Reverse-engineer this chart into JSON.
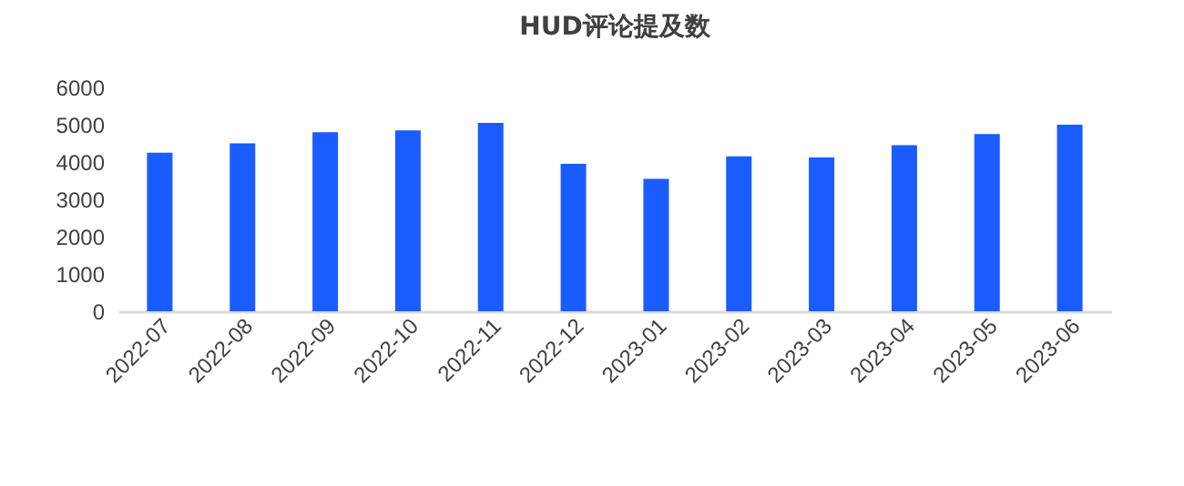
{
  "chart_data": {
    "type": "bar",
    "title": "HUD评论提及数",
    "categories": [
      "2022-07",
      "2022-08",
      "2022-09",
      "2022-10",
      "2022-11",
      "2022-12",
      "2023-01",
      "2023-02",
      "2023-03",
      "2023-04",
      "2023-05",
      "2023-06"
    ],
    "values": [
      4250,
      4500,
      4800,
      4850,
      5050,
      3950,
      3550,
      4150,
      4120,
      4450,
      4750,
      5000
    ],
    "color": "#1a5cff",
    "ylim": [
      0,
      6000
    ],
    "yticks": [
      0,
      1000,
      2000,
      3000,
      4000,
      5000,
      6000
    ],
    "grid": false
  }
}
